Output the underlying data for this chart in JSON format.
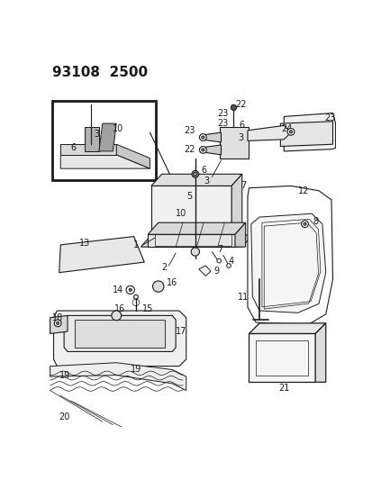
{
  "title": "93108  2500",
  "background_color": "#ffffff",
  "line_color": "#1a1a1a",
  "title_fontsize": 11,
  "label_fontsize": 7,
  "fig_width": 4.14,
  "fig_height": 5.33,
  "dpi": 100
}
